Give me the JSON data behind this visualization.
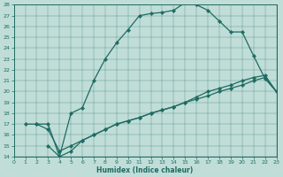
{
  "xlabel": "Humidex (Indice chaleur)",
  "bg_color": "#c0ddd8",
  "line_color": "#1e6b62",
  "marker": "D",
  "markersize": 2.2,
  "linewidth": 0.9,
  "xlim": [
    0,
    23
  ],
  "ylim": [
    14,
    28
  ],
  "xticks": [
    0,
    1,
    2,
    3,
    4,
    5,
    6,
    7,
    8,
    9,
    10,
    11,
    12,
    13,
    14,
    15,
    16,
    17,
    18,
    19,
    20,
    21,
    22,
    23
  ],
  "yticks": [
    14,
    15,
    16,
    17,
    18,
    19,
    20,
    21,
    22,
    23,
    24,
    25,
    26,
    27,
    28
  ],
  "line1_x": [
    1,
    2,
    3,
    4,
    5,
    6,
    7,
    8,
    9,
    10,
    11,
    12,
    13,
    14,
    15,
    16,
    17,
    18,
    19,
    20,
    21,
    22,
    23
  ],
  "line1_y": [
    17,
    17,
    17,
    14,
    18,
    18.5,
    21,
    23,
    24.5,
    25.7,
    27,
    27.2,
    27.3,
    27.5,
    28.2,
    28,
    27.5,
    26.5,
    25.5,
    25.5,
    23.3,
    21.2,
    20.0
  ],
  "line2_x": [
    3,
    4,
    5,
    6,
    7,
    8,
    9,
    10,
    11,
    12,
    13,
    14,
    15,
    16,
    17,
    18,
    19,
    20,
    21,
    22,
    23
  ],
  "line2_y": [
    15,
    14,
    14.5,
    15.5,
    16,
    16.5,
    17,
    17.3,
    17.6,
    18,
    18.3,
    18.6,
    19,
    19.5,
    20,
    20.3,
    20.6,
    21,
    21.3,
    21.5,
    20
  ],
  "line3_x": [
    2,
    3,
    4,
    5,
    6,
    7,
    8,
    9,
    10,
    11,
    12,
    13,
    14,
    15,
    16,
    17,
    18,
    19,
    20,
    21,
    22,
    23
  ],
  "line3_y": [
    17,
    16.5,
    14.5,
    15,
    15.5,
    16,
    16.5,
    17,
    17.3,
    17.6,
    18,
    18.3,
    18.6,
    19,
    19.3,
    19.6,
    20,
    20.3,
    20.6,
    21,
    21.3,
    20
  ]
}
